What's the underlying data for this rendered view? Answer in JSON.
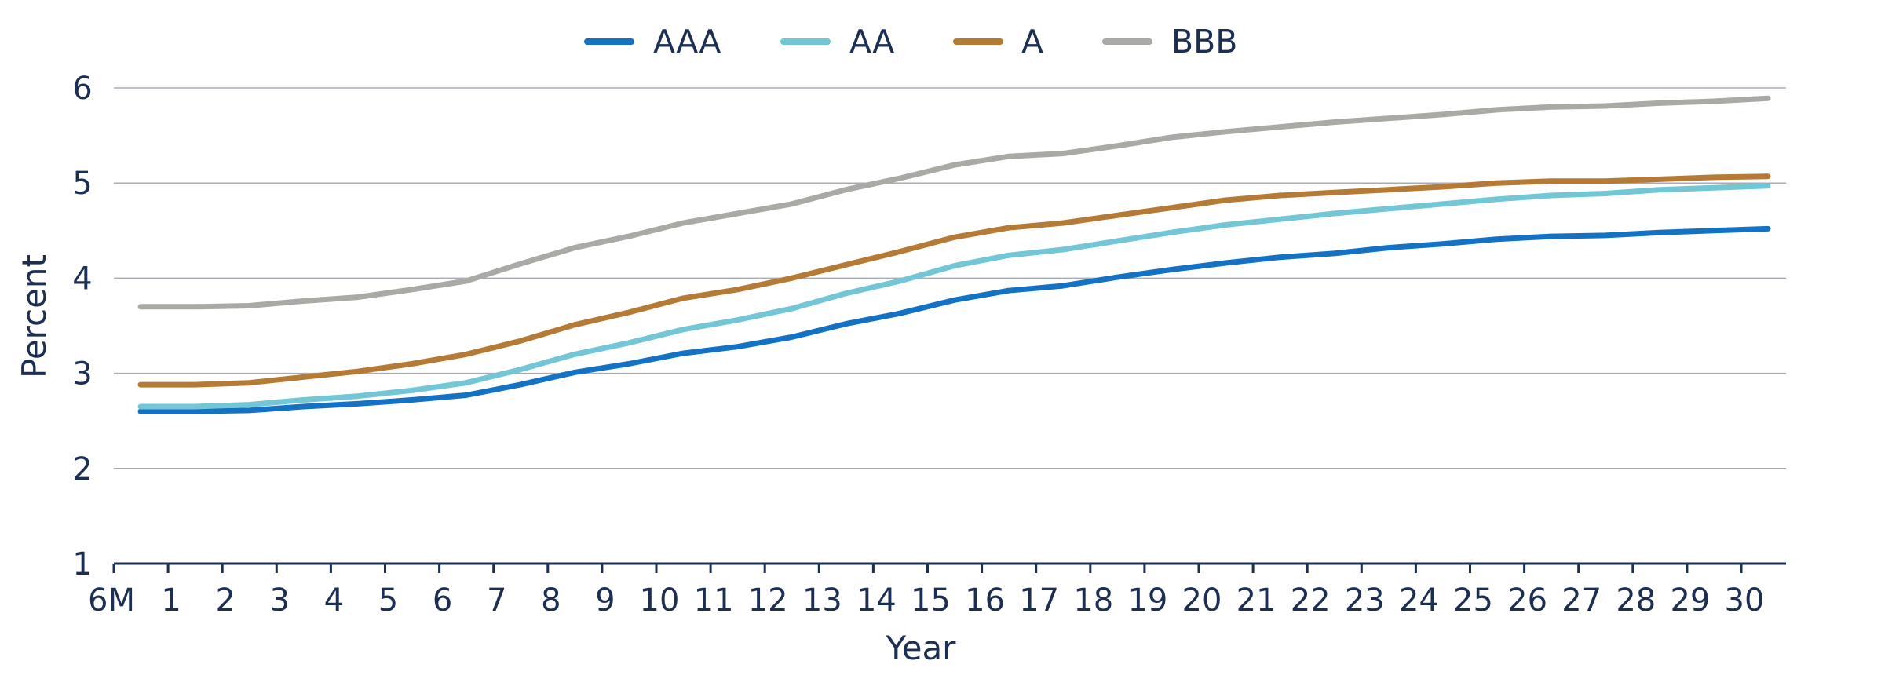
{
  "chart_data": {
    "type": "line",
    "title": "",
    "xlabel": "Year",
    "ylabel": "Percent",
    "categories": [
      "6M",
      "1",
      "2",
      "3",
      "4",
      "5",
      "6",
      "7",
      "8",
      "9",
      "10",
      "11",
      "12",
      "13",
      "14",
      "15",
      "16",
      "17",
      "18",
      "19",
      "20",
      "21",
      "22",
      "23",
      "24",
      "25",
      "26",
      "27",
      "28",
      "29",
      "30"
    ],
    "ylim": [
      1,
      6
    ],
    "yticks": [
      "1",
      "2",
      "3",
      "4",
      "5",
      "6"
    ],
    "grid": true,
    "legend": "top-center",
    "series": [
      {
        "name": "AAA",
        "color": "#1372c4",
        "values": [
          2.6,
          2.6,
          2.61,
          2.65,
          2.68,
          2.72,
          2.77,
          2.88,
          3.01,
          3.1,
          3.21,
          3.28,
          3.38,
          3.52,
          3.63,
          3.77,
          3.87,
          3.92,
          4.01,
          4.09,
          4.16,
          4.22,
          4.26,
          4.32,
          4.36,
          4.41,
          4.44,
          4.45,
          4.48,
          4.5,
          4.52
        ]
      },
      {
        "name": "AA",
        "color": "#72c6d5",
        "values": [
          2.65,
          2.65,
          2.67,
          2.72,
          2.76,
          2.82,
          2.9,
          3.04,
          3.2,
          3.32,
          3.46,
          3.56,
          3.68,
          3.84,
          3.97,
          4.13,
          4.24,
          4.3,
          4.39,
          4.48,
          4.56,
          4.62,
          4.68,
          4.73,
          4.78,
          4.83,
          4.87,
          4.89,
          4.93,
          4.95,
          4.97
        ]
      },
      {
        "name": "A",
        "color": "#b57a35",
        "values": [
          2.88,
          2.88,
          2.9,
          2.96,
          3.02,
          3.1,
          3.2,
          3.34,
          3.51,
          3.64,
          3.79,
          3.88,
          4.0,
          4.14,
          4.28,
          4.43,
          4.53,
          4.58,
          4.66,
          4.74,
          4.82,
          4.87,
          4.9,
          4.93,
          4.96,
          5.0,
          5.02,
          5.02,
          5.04,
          5.06,
          5.07
        ]
      },
      {
        "name": "BBB",
        "color": "#a9a9a5",
        "values": [
          3.7,
          3.7,
          3.71,
          3.76,
          3.8,
          3.88,
          3.97,
          4.15,
          4.32,
          4.44,
          4.58,
          4.68,
          4.78,
          4.93,
          5.05,
          5.19,
          5.28,
          5.31,
          5.39,
          5.48,
          5.54,
          5.59,
          5.64,
          5.68,
          5.72,
          5.77,
          5.8,
          5.81,
          5.84,
          5.86,
          5.89
        ]
      }
    ]
  }
}
